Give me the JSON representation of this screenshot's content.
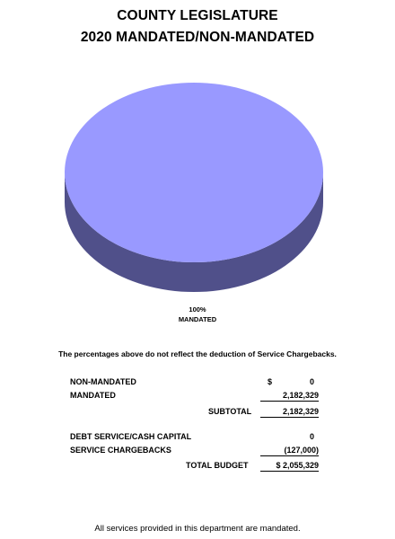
{
  "title_line1": "COUNTY LEGISLATURE",
  "title_line2": "2020 MANDATED/NON-MANDATED",
  "chart_data": {
    "type": "pie",
    "title": "COUNTY LEGISLATURE 2020 MANDATED/NON-MANDATED",
    "categories": [
      "MANDATED"
    ],
    "values": [
      100
    ],
    "labels": [
      {
        "percent": "100%",
        "name": "MANDATED"
      }
    ],
    "colors": [
      "#9999ff"
    ],
    "style": "3d"
  },
  "note": "The percentages above do not reflect the deduction of Service Chargebacks.",
  "table": {
    "non_mandated_label": "NON-MANDATED",
    "non_mandated_currency": "$",
    "non_mandated_value": "0",
    "mandated_label": "MANDATED",
    "mandated_value": "2,182,329",
    "subtotal_label": "SUBTOTAL",
    "subtotal_value": "2,182,329",
    "debt_label": "DEBT SERVICE/CASH CAPITAL",
    "debt_value": "0",
    "chargebacks_label": "SERVICE CHARGEBACKS",
    "chargebacks_value": "(127,000)",
    "total_label": "TOTAL BUDGET",
    "total_value": "$ 2,055,329"
  },
  "footer": "All services provided in this department are mandated."
}
